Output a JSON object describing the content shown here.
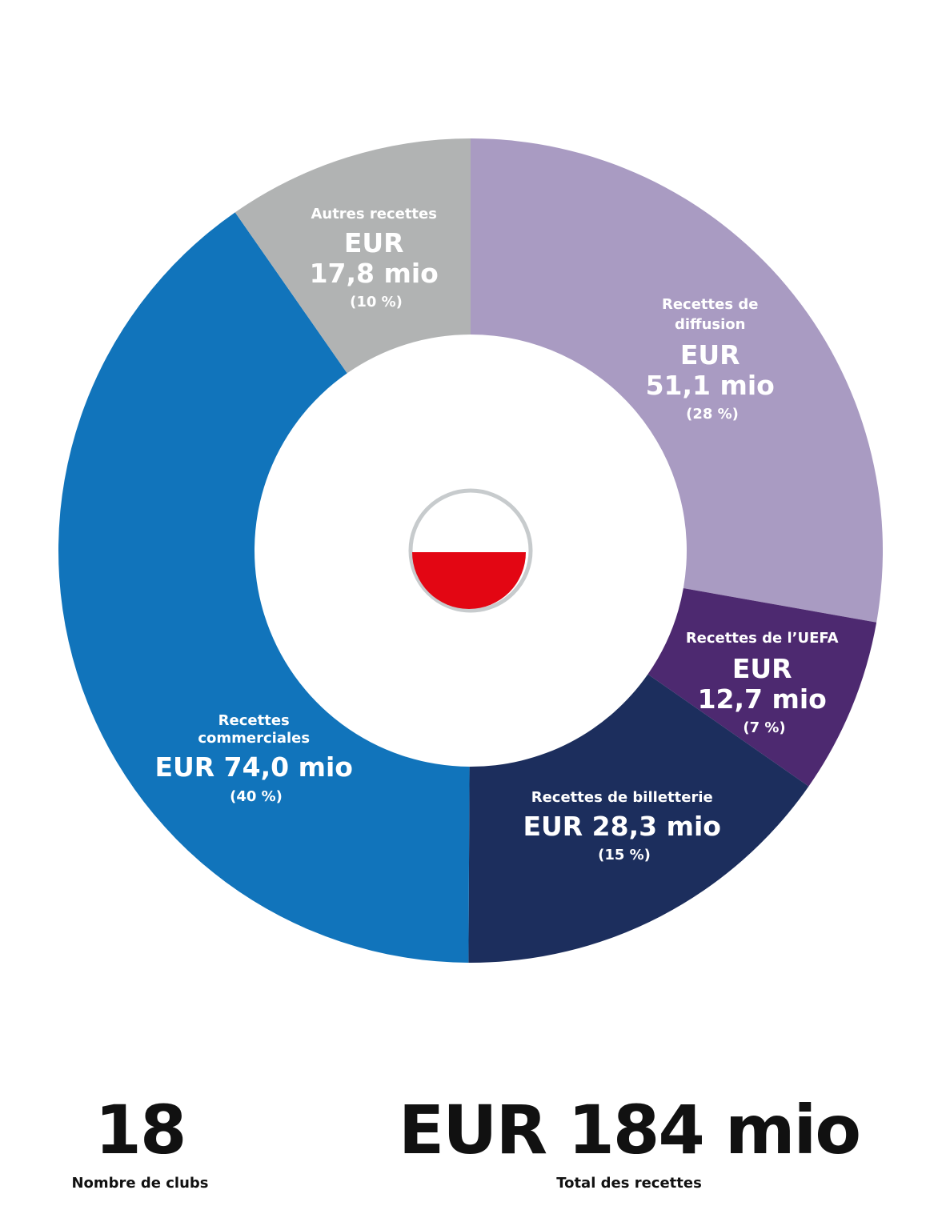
{
  "chart_data": {
    "type": "pie",
    "unit": "EUR mio",
    "slices": [
      {
        "label": "Recettes de diffusion",
        "value": 51.1,
        "value_text": "EUR 51,1 mio",
        "percent_text": "(28 %)",
        "color": "#a99bc2"
      },
      {
        "label": "Recettes de l’UEFA",
        "value": 12.7,
        "value_text": "EUR 12,7 mio",
        "percent_text": "(7 %)",
        "color": "#4d2970"
      },
      {
        "label": "Recettes de billetterie",
        "value": 28.3,
        "value_text": "EUR 28,3 mio",
        "percent_text": "(15 %)",
        "color": "#1c2e5d"
      },
      {
        "label": "Recettes commerciales",
        "value": 74.0,
        "value_text": "EUR 74,0 mio",
        "percent_text": "(40 %)",
        "color": "#1174bb"
      },
      {
        "label": "Autres recettes",
        "value": 17.8,
        "value_text": "EUR 17,8 mio",
        "percent_text": "(10 %)",
        "color": "#b1b3b3"
      }
    ]
  },
  "center_flag": {
    "icon": "poland-flag-icon",
    "top_color": "#ffffff",
    "bottom_color": "#e30613",
    "ring_color": "#c7cbcd"
  },
  "stats": {
    "clubs": {
      "value": "18",
      "label": "Nombre de clubs"
    },
    "total": {
      "value": "EUR 184 mio",
      "label": "Total des recettes"
    }
  }
}
